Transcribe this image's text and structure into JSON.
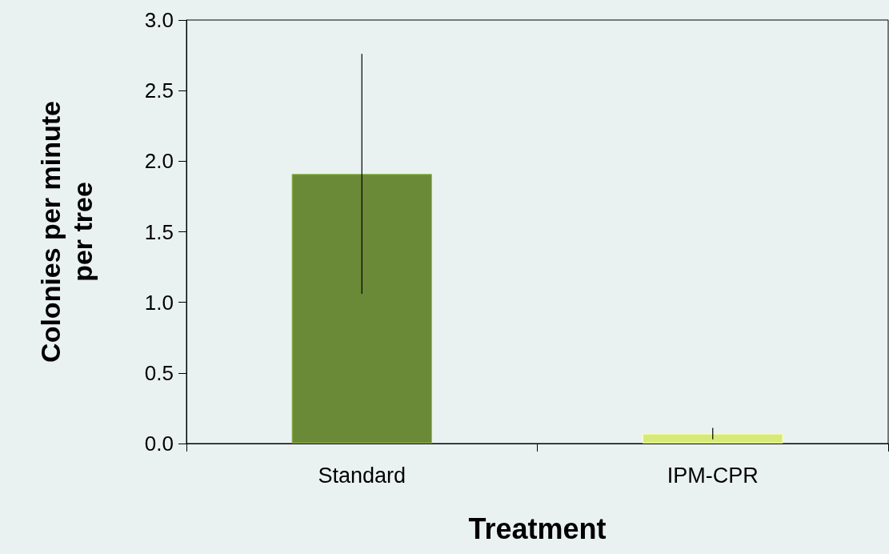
{
  "chart_data": {
    "type": "bar",
    "xlabel": "Treatment",
    "ylabel": "Colonies per minute per tree",
    "categories": [
      "Standard",
      "IPM-CPR"
    ],
    "values": [
      1.91,
      0.07
    ],
    "colors": [
      "#6a8a38",
      "#d6ea7a"
    ],
    "errors": [
      0.85,
      0.04
    ],
    "ylim": [
      0,
      3.0
    ],
    "yticks": [
      {
        "value": 0,
        "label": "0.0"
      },
      {
        "value": 0.5,
        "label": "0.5"
      },
      {
        "value": 1,
        "label": "1.0"
      },
      {
        "value": 1.5,
        "label": "1.5"
      },
      {
        "value": 2,
        "label": "2.0"
      },
      {
        "value": 2.5,
        "label": "2.5"
      },
      {
        "value": 3,
        "label": "3.0"
      }
    ],
    "grid": false
  }
}
